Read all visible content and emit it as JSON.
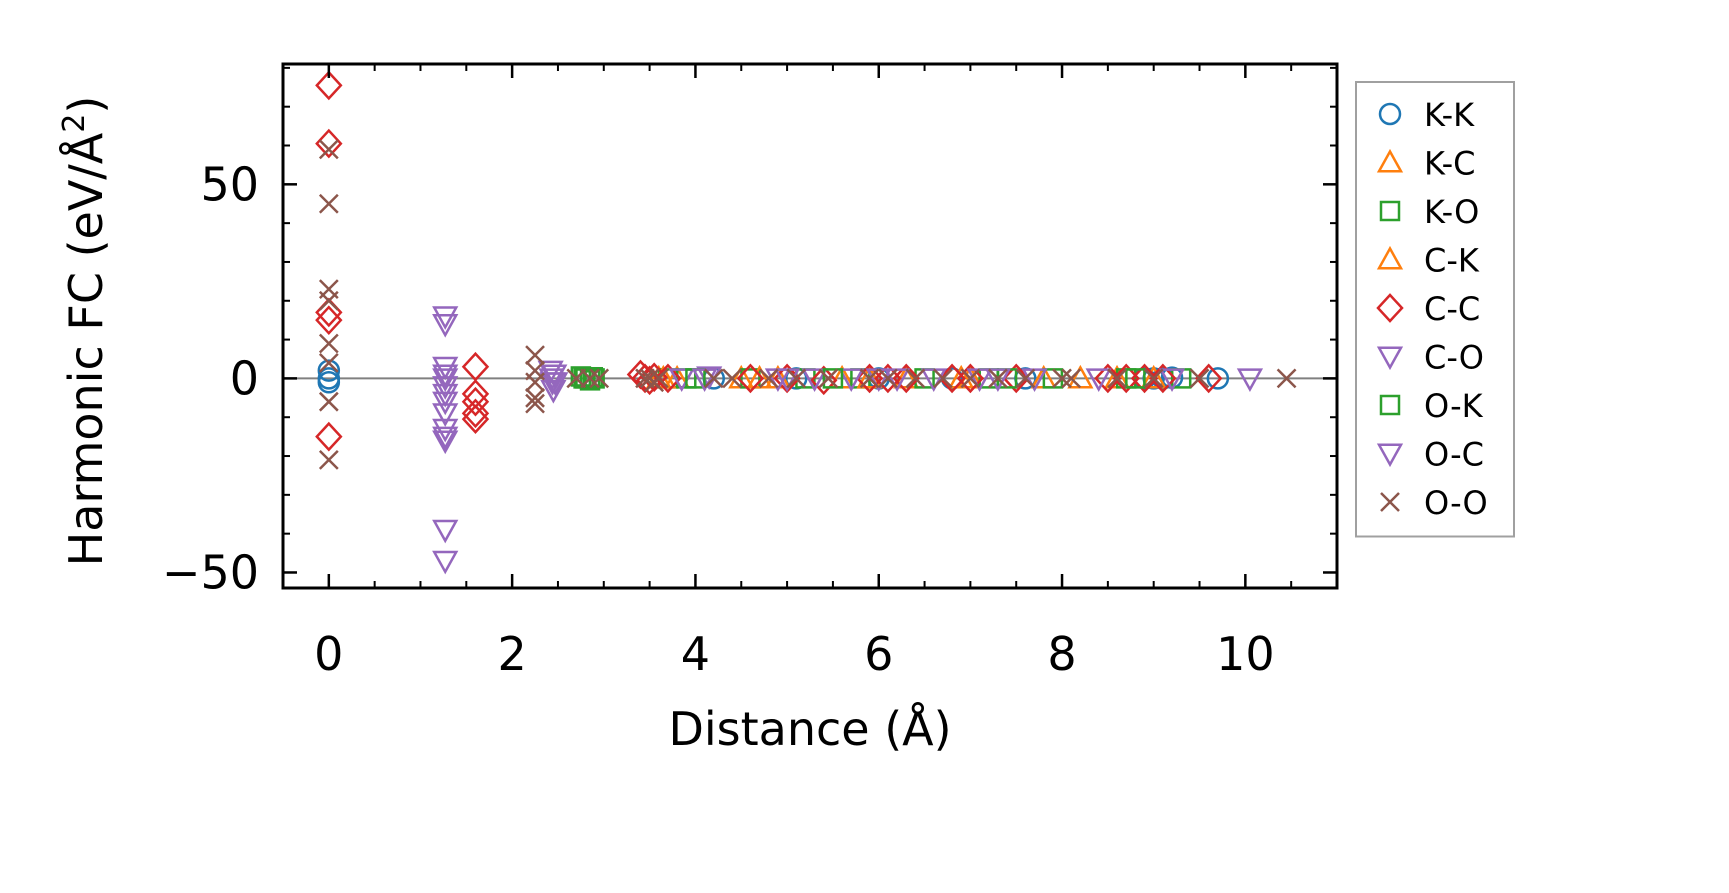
{
  "chart_data": {
    "type": "scatter",
    "xlabel": "Distance (Å)",
    "ylabel_main": "Harmonic FC (eV/Å",
    "ylabel_sup": "2",
    "ylabel_close": ")",
    "xlim": [
      -0.5,
      11.0
    ],
    "ylim": [
      -54,
      81
    ],
    "xticks": [
      0,
      2,
      4,
      6,
      8,
      10
    ],
    "xtick_labels": [
      "0",
      "2",
      "4",
      "6",
      "8",
      "10"
    ],
    "yticks": [
      -50,
      0,
      50
    ],
    "ytick_labels": [
      "−50",
      "0",
      "50"
    ],
    "zero_line": true,
    "grid": false,
    "legend_position": "outside-right",
    "series": [
      {
        "name": "K-K",
        "marker": "circle",
        "color": "#1f77b4",
        "points": [
          [
            0,
            0
          ],
          [
            0,
            2
          ],
          [
            0,
            -1
          ],
          [
            9.0,
            0
          ],
          [
            9.1,
            0
          ],
          [
            9.2,
            0.2
          ],
          [
            9.7,
            0
          ],
          [
            8.9,
            0
          ],
          [
            4.2,
            0
          ],
          [
            5.1,
            0
          ],
          [
            6.0,
            0
          ],
          [
            6.8,
            0
          ],
          [
            7.6,
            0
          ]
        ]
      },
      {
        "name": "K-C",
        "marker": "triangle-up",
        "color": "#ff7f0e",
        "points": [
          [
            3.6,
            0
          ],
          [
            3.8,
            0
          ],
          [
            4.5,
            0
          ],
          [
            4.9,
            0
          ],
          [
            5.6,
            0
          ],
          [
            6.3,
            0
          ],
          [
            7.0,
            0
          ],
          [
            7.8,
            0
          ],
          [
            8.6,
            0
          ],
          [
            9.0,
            0
          ]
        ]
      },
      {
        "name": "K-O",
        "marker": "square",
        "color": "#2ca02c",
        "points": [
          [
            2.75,
            0.5
          ],
          [
            2.8,
            0
          ],
          [
            2.85,
            -0.5
          ],
          [
            2.9,
            0
          ],
          [
            3.7,
            0
          ],
          [
            3.9,
            0
          ],
          [
            4.6,
            0
          ],
          [
            5.2,
            0
          ],
          [
            5.8,
            0
          ],
          [
            6.5,
            0
          ],
          [
            7.2,
            0
          ],
          [
            7.9,
            0
          ],
          [
            8.7,
            0
          ],
          [
            9.3,
            0
          ]
        ]
      },
      {
        "name": "C-K",
        "marker": "triangle-up",
        "color": "#ff7f0e",
        "points": [
          [
            3.65,
            0
          ],
          [
            4.7,
            0
          ],
          [
            5.9,
            0
          ],
          [
            6.9,
            0
          ],
          [
            8.2,
            0
          ]
        ]
      },
      {
        "name": "C-C",
        "marker": "diamond",
        "color": "#d62728",
        "points": [
          [
            0,
            75.5
          ],
          [
            0,
            60.5
          ],
          [
            0,
            17
          ],
          [
            0,
            15
          ],
          [
            0,
            -15
          ],
          [
            1.6,
            3
          ],
          [
            1.6,
            -4
          ],
          [
            1.6,
            -6
          ],
          [
            1.6,
            -9
          ],
          [
            1.6,
            -10.5
          ],
          [
            3.4,
            1
          ],
          [
            3.45,
            0
          ],
          [
            3.5,
            -0.5
          ],
          [
            3.55,
            0.3
          ],
          [
            3.7,
            0
          ],
          [
            4.6,
            0
          ],
          [
            5.0,
            0
          ],
          [
            5.4,
            -0.5
          ],
          [
            5.9,
            0
          ],
          [
            6.1,
            0
          ],
          [
            6.3,
            0
          ],
          [
            6.8,
            0
          ],
          [
            7.0,
            0
          ],
          [
            7.5,
            0
          ],
          [
            8.5,
            0
          ],
          [
            8.7,
            0
          ],
          [
            8.9,
            0
          ],
          [
            9.1,
            0
          ],
          [
            9.6,
            0
          ]
        ]
      },
      {
        "name": "C-O",
        "marker": "triangle-down",
        "color": "#9467bd",
        "points": [
          [
            1.27,
            16
          ],
          [
            1.27,
            14
          ],
          [
            1.27,
            3
          ],
          [
            1.27,
            1
          ],
          [
            1.27,
            0
          ],
          [
            1.27,
            -2
          ],
          [
            1.27,
            -4
          ],
          [
            1.27,
            -6
          ],
          [
            1.27,
            -9
          ],
          [
            1.27,
            -13
          ],
          [
            1.27,
            -15
          ],
          [
            1.27,
            -16
          ],
          [
            1.27,
            -39
          ],
          [
            1.27,
            -47
          ],
          [
            2.42,
            2
          ],
          [
            2.43,
            0
          ],
          [
            2.44,
            -1
          ],
          [
            2.45,
            -3
          ],
          [
            3.85,
            0
          ],
          [
            4.15,
            0.5
          ],
          [
            4.9,
            0
          ],
          [
            5.3,
            0
          ],
          [
            5.7,
            0
          ],
          [
            6.2,
            0
          ],
          [
            6.6,
            0
          ],
          [
            7.1,
            0
          ],
          [
            7.7,
            0
          ],
          [
            8.4,
            0
          ],
          [
            10.05,
            0
          ]
        ]
      },
      {
        "name": "O-K",
        "marker": "square",
        "color": "#2ca02c",
        "points": [
          [
            2.78,
            0
          ],
          [
            2.88,
            0.3
          ],
          [
            4.0,
            0
          ],
          [
            5.5,
            0
          ],
          [
            7.4,
            0
          ],
          [
            8.8,
            0
          ]
        ]
      },
      {
        "name": "O-C",
        "marker": "triangle-down",
        "color": "#9467bd",
        "points": [
          [
            2.46,
            1
          ],
          [
            2.47,
            -1
          ],
          [
            4.1,
            0
          ],
          [
            5.0,
            0
          ],
          [
            6.0,
            0
          ],
          [
            7.3,
            0
          ],
          [
            9.2,
            0
          ]
        ]
      },
      {
        "name": "O-O",
        "marker": "x",
        "color": "#8c564b",
        "points": [
          [
            0,
            59
          ],
          [
            0,
            45
          ],
          [
            0,
            23
          ],
          [
            0,
            20
          ],
          [
            0,
            9
          ],
          [
            0,
            4
          ],
          [
            0,
            -6
          ],
          [
            0,
            -21
          ],
          [
            2.25,
            6
          ],
          [
            2.25,
            2
          ],
          [
            2.25,
            -1
          ],
          [
            2.25,
            -5
          ],
          [
            2.25,
            -6.5
          ],
          [
            2.7,
            0
          ],
          [
            2.85,
            0
          ],
          [
            2.95,
            0
          ],
          [
            3.45,
            0
          ],
          [
            3.5,
            0
          ],
          [
            3.55,
            -1
          ],
          [
            3.6,
            0
          ],
          [
            4.2,
            0
          ],
          [
            4.4,
            0
          ],
          [
            4.8,
            0
          ],
          [
            5.1,
            0
          ],
          [
            5.45,
            0
          ],
          [
            5.9,
            0
          ],
          [
            6.1,
            0
          ],
          [
            6.4,
            0
          ],
          [
            6.7,
            0
          ],
          [
            7.0,
            0
          ],
          [
            7.3,
            0
          ],
          [
            7.6,
            0
          ],
          [
            8.0,
            0
          ],
          [
            8.1,
            0
          ],
          [
            8.6,
            0
          ],
          [
            9.0,
            0
          ],
          [
            9.5,
            0
          ],
          [
            10.45,
            0
          ]
        ]
      }
    ]
  }
}
